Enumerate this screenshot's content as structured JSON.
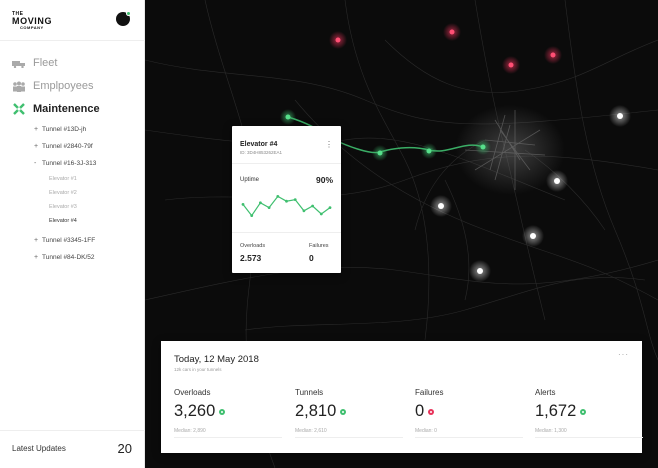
{
  "brand": {
    "line1": "THE",
    "line2": "MOVING",
    "line3": "COMPANY"
  },
  "colors": {
    "accent": "#3fbf6f",
    "alert": "#e8335a",
    "map_bg": "#0b0b0b"
  },
  "sidebar": {
    "nav": [
      {
        "label": "Fleet",
        "icon": "truck-icon"
      },
      {
        "label": "Emplpoyees",
        "icon": "people-icon"
      },
      {
        "label": "Maintenence",
        "icon": "tools-icon",
        "active": true
      }
    ],
    "tree": [
      {
        "label": "Tunnel #13D-jh",
        "toggle": "+"
      },
      {
        "label": "Tunnel #2840-79f",
        "toggle": "+"
      },
      {
        "label": "Tunnel #16-3J-313",
        "toggle": "-"
      },
      {
        "label": "Tunnel #3345-1FF",
        "toggle": "+"
      },
      {
        "label": "Tunnel #84-DK/52",
        "toggle": "+"
      }
    ],
    "subitems": [
      "Elevator #1",
      "Elevator #2",
      "Elevator #3",
      "Elevator #4"
    ],
    "latest_label": "Latest Updates",
    "latest_count": "20"
  },
  "popup": {
    "title": "Elevator #4",
    "id": "ID: 3D4H853262EA1",
    "uptime_label": "Uptime",
    "uptime_value": "90%",
    "sparkline": [
      0.55,
      0.2,
      0.6,
      0.45,
      0.8,
      0.65,
      0.7,
      0.35,
      0.5,
      0.25,
      0.45
    ],
    "overloads_label": "Overloads",
    "overloads_value": "2.573",
    "failures_label": "Failures",
    "failures_value": "0"
  },
  "stats": {
    "date": "Today, 12 May 2018",
    "subtitle": "12k cars in your tunnels",
    "more": "···",
    "items": [
      {
        "label": "Overloads",
        "value": "3,260",
        "median": "Median: 2,890",
        "status": "green"
      },
      {
        "label": "Tunnels",
        "value": "2,810",
        "median": "Median: 2,610",
        "status": "green"
      },
      {
        "label": "Failures",
        "value": "0",
        "median": "Median: 0",
        "status": "red"
      },
      {
        "label": "Alerts",
        "value": "1,672",
        "median": "Median: 1,300",
        "status": "green"
      }
    ]
  }
}
